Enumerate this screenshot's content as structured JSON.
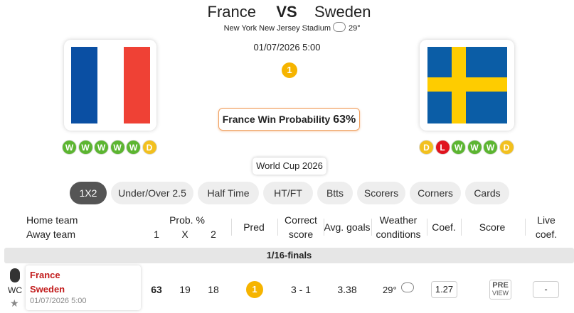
{
  "match": {
    "home": "France",
    "vs": "VS",
    "away": "Sweden",
    "venue": "New York New Jersey Stadium",
    "temperature": "29°",
    "datetime": "01/07/2026 5:00",
    "prediction": "1",
    "probability_label": "France Win Probability",
    "probability": "63%",
    "home_form": [
      "W",
      "W",
      "W",
      "W",
      "W",
      "D"
    ],
    "away_form": [
      "D",
      "L",
      "W",
      "W",
      "W",
      "D"
    ],
    "competition": "World Cup 2026"
  },
  "tabs": [
    "1X2",
    "Under/Over 2.5",
    "Half Time",
    "HT/FT",
    "Btts",
    "Scorers",
    "Corners",
    "Cards"
  ],
  "table": {
    "headers": {
      "home": "Home team",
      "away": "Away team",
      "prob": "Prob. %",
      "p1": "1",
      "px": "X",
      "p2": "2",
      "pred": "Pred",
      "correct": "Correct",
      "score_word": "score",
      "avg": "Avg. goals",
      "weather": "Weather",
      "conditions": "conditions",
      "coef": "Coef.",
      "score": "Score",
      "live": "Live",
      "live_coef": "coef."
    },
    "round": "1/16-finals",
    "rows": [
      {
        "league": "WC",
        "home": "France",
        "away": "Sweden",
        "date": "01/07/2026 5:00",
        "p1": "63",
        "px": "19",
        "p2": "18",
        "pred": "1",
        "correct": "3 - 1",
        "avg": "3.38",
        "temp": "29°",
        "coef": "1.27",
        "pre": "PRE",
        "view": "VIEW",
        "live": "-"
      }
    ]
  }
}
